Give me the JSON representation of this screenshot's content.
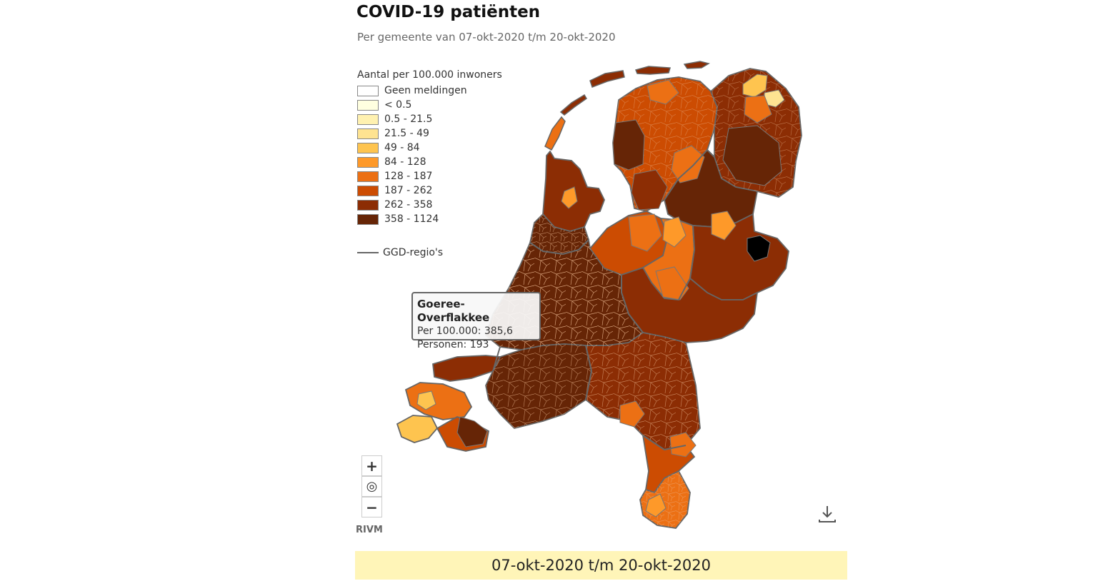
{
  "header": {
    "title": "COVID-19 patiënten",
    "subtitle": "Per gemeente van 07-okt-2020 t/m 20-okt-2020"
  },
  "legend": {
    "title": "Aantal per 100.000 inwoners",
    "items": [
      {
        "label": "Geen meldingen",
        "color": "#ffffff"
      },
      {
        "label": "< 0.5",
        "color": "#ffffe0"
      },
      {
        "label": "0.5 - 21.5",
        "color": "#fff1b0"
      },
      {
        "label": "21.5 - 49",
        "color": "#fee391"
      },
      {
        "label": "49 - 84",
        "color": "#fec44f"
      },
      {
        "label": "84 - 128",
        "color": "#fe9929"
      },
      {
        "label": "128 - 187",
        "color": "#ec7014"
      },
      {
        "label": "187 - 262",
        "color": "#cc4c02"
      },
      {
        "label": "262 - 358",
        "color": "#8c2d04"
      },
      {
        "label": "358 - 1124",
        "color": "#662506"
      }
    ],
    "ggd_line_label": "GGD-regio's",
    "ggd_line_color": "#666666"
  },
  "tooltip": {
    "title": "Goeree-Overflakkee",
    "rate": "Per 100.000: 385,6",
    "persons": "Personen: 193"
  },
  "controls": {
    "zoom_in": "+",
    "reset": "◎",
    "zoom_out": "−"
  },
  "credit": "RIVM",
  "period_label": "07-okt-2020 t/m 20-okt-2020",
  "colors": {
    "max_bin": "#000000",
    "period_bar_bg": "#fff5b8"
  }
}
